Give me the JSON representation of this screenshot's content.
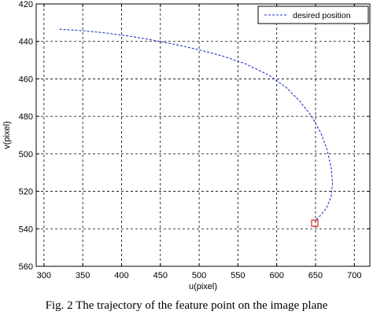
{
  "chart_data": {
    "type": "line",
    "xlabel": "u(pixel)",
    "ylabel": "v(pixel)",
    "xlim": [
      290,
      720
    ],
    "ylim": [
      420,
      560
    ],
    "y_reversed": true,
    "grid": true,
    "x_ticks": [
      300,
      350,
      400,
      450,
      500,
      550,
      600,
      650,
      700
    ],
    "y_ticks": [
      420,
      440,
      460,
      480,
      500,
      520,
      540,
      560
    ],
    "legend_position": "top-right",
    "series": [
      {
        "name": "desired position",
        "color": "#2233cc",
        "line_style": "dashed",
        "x": [
          320,
          350,
          380,
          410,
          440,
          470,
          500,
          530,
          560,
          590,
          612,
          630,
          645,
          657,
          665,
          670,
          672,
          670,
          664,
          656,
          649
        ],
        "y": [
          433.5,
          434.3,
          435.5,
          437.2,
          439.3,
          441.7,
          444.5,
          447.8,
          452.0,
          458.0,
          464.5,
          472.0,
          480.0,
          489.0,
          498.0,
          507.0,
          515.5,
          523.0,
          529.0,
          533.0,
          536.0
        ]
      }
    ],
    "marker": {
      "shape": "square",
      "color": "#dd2222",
      "x": 649,
      "y": 537
    }
  },
  "caption": "Fig. 2 The trajectory of the feature point on the image plane"
}
